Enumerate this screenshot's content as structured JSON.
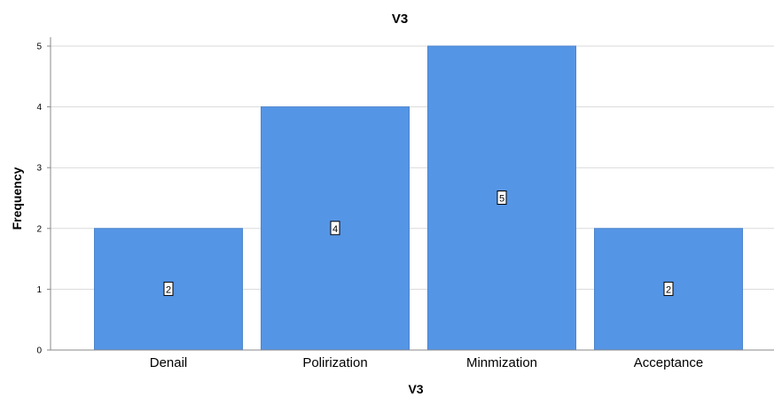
{
  "chart_data": {
    "type": "bar",
    "title": "V3",
    "xlabel": "V3",
    "ylabel": "Frequency",
    "categories": [
      "Denail",
      "Polirization",
      "Minmization",
      "Acceptance"
    ],
    "values": [
      2,
      4,
      5,
      2
    ],
    "data_labels": [
      "2",
      "4",
      "5",
      "2"
    ],
    "yticks": [
      "0",
      "1",
      "2",
      "3",
      "4",
      "5"
    ],
    "ylim": [
      0,
      5
    ],
    "grid": true,
    "legend": "none",
    "colors": {
      "bar": "#5595e5",
      "bar_edge": "#4d85cc",
      "grid": "#d9d9d9",
      "axis": "#888888",
      "label_box_stroke": "#000000",
      "label_box_fill": "#ffffff"
    }
  }
}
